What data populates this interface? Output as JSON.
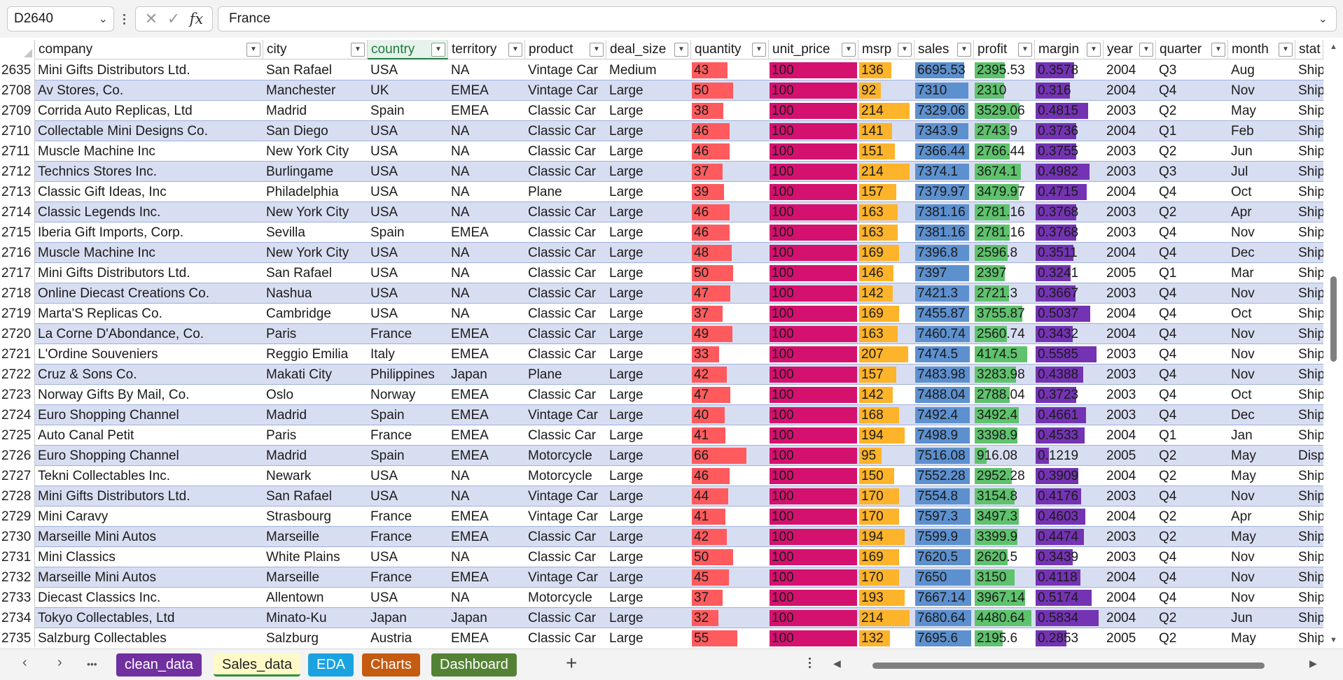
{
  "formula_bar": {
    "cell_ref": "D2640",
    "content": "France",
    "fx_label": "fx",
    "cancel_glyph": "✕",
    "confirm_glyph": "✓"
  },
  "columns": [
    "company",
    "city",
    "country",
    "territory",
    "product",
    "deal_size",
    "quantity",
    "unit_price",
    "msrp",
    "sales",
    "profit",
    "margin",
    "year",
    "quarter",
    "month",
    "status"
  ],
  "column_headers_visible": [
    "company",
    "city",
    "country",
    "territory",
    "product",
    "deal_size",
    "quantity",
    "unit_price",
    "msrp",
    "sales",
    "profit",
    "margin",
    "year",
    "quarter",
    "month",
    "stat"
  ],
  "selected_column": "country",
  "bar_colors": {
    "quantity": "#ff5b5e",
    "unit_price": "#d4116f",
    "msrp": "#fdb32a",
    "sales": "#5d90cf",
    "profit": "#5fc26d",
    "margin": "#7433b3"
  },
  "band_color": "#d8def2",
  "rows": [
    {
      "n": "2635",
      "company": "Mini Gifts Distributors Ltd.",
      "city": "San Rafael",
      "country": "USA",
      "territory": "NA",
      "product": "Vintage Car",
      "deal_size": "Medium",
      "quantity": "43",
      "unit_price": "100",
      "msrp": "136",
      "sales": "6695.53",
      "profit": "2395.53",
      "margin": "0.3578",
      "year": "2004",
      "quarter": "Q3",
      "month": "Aug",
      "status": "Ship"
    },
    {
      "n": "2708",
      "company": "Av Stores, Co.",
      "city": "Manchester",
      "country": "UK",
      "territory": "EMEA",
      "product": "Vintage Car",
      "deal_size": "Large",
      "quantity": "50",
      "unit_price": "100",
      "msrp": "92",
      "sales": "7310",
      "profit": "2310",
      "margin": "0.316",
      "year": "2004",
      "quarter": "Q4",
      "month": "Nov",
      "status": "Ship"
    },
    {
      "n": "2709",
      "company": "Corrida Auto Replicas, Ltd",
      "city": "Madrid",
      "country": "Spain",
      "territory": "EMEA",
      "product": "Classic Car",
      "deal_size": "Large",
      "quantity": "38",
      "unit_price": "100",
      "msrp": "214",
      "sales": "7329.06",
      "profit": "3529.06",
      "margin": "0.4815",
      "year": "2003",
      "quarter": "Q2",
      "month": "May",
      "status": "Ship"
    },
    {
      "n": "2710",
      "company": "Collectable Mini Designs Co.",
      "city": "San Diego",
      "country": "USA",
      "territory": "NA",
      "product": "Classic Car",
      "deal_size": "Large",
      "quantity": "46",
      "unit_price": "100",
      "msrp": "141",
      "sales": "7343.9",
      "profit": "2743.9",
      "margin": "0.3736",
      "year": "2004",
      "quarter": "Q1",
      "month": "Feb",
      "status": "Ship"
    },
    {
      "n": "2711",
      "company": "Muscle Machine Inc",
      "city": "New York City",
      "country": "USA",
      "territory": "NA",
      "product": "Classic Car",
      "deal_size": "Large",
      "quantity": "46",
      "unit_price": "100",
      "msrp": "151",
      "sales": "7366.44",
      "profit": "2766.44",
      "margin": "0.3755",
      "year": "2003",
      "quarter": "Q2",
      "month": "Jun",
      "status": "Ship"
    },
    {
      "n": "2712",
      "company": "Technics Stores Inc.",
      "city": "Burlingame",
      "country": "USA",
      "territory": "NA",
      "product": "Classic Car",
      "deal_size": "Large",
      "quantity": "37",
      "unit_price": "100",
      "msrp": "214",
      "sales": "7374.1",
      "profit": "3674.1",
      "margin": "0.4982",
      "year": "2003",
      "quarter": "Q3",
      "month": "Jul",
      "status": "Ship"
    },
    {
      "n": "2713",
      "company": "Classic Gift Ideas, Inc",
      "city": "Philadelphia",
      "country": "USA",
      "territory": "NA",
      "product": "Plane",
      "deal_size": "Large",
      "quantity": "39",
      "unit_price": "100",
      "msrp": "157",
      "sales": "7379.97",
      "profit": "3479.97",
      "margin": "0.4715",
      "year": "2004",
      "quarter": "Q4",
      "month": "Oct",
      "status": "Ship"
    },
    {
      "n": "2714",
      "company": "Classic Legends Inc.",
      "city": "New York City",
      "country": "USA",
      "territory": "NA",
      "product": "Classic Car",
      "deal_size": "Large",
      "quantity": "46",
      "unit_price": "100",
      "msrp": "163",
      "sales": "7381.16",
      "profit": "2781.16",
      "margin": "0.3768",
      "year": "2003",
      "quarter": "Q2",
      "month": "Apr",
      "status": "Ship"
    },
    {
      "n": "2715",
      "company": "Iberia Gift Imports, Corp.",
      "city": "Sevilla",
      "country": "Spain",
      "territory": "EMEA",
      "product": "Classic Car",
      "deal_size": "Large",
      "quantity": "46",
      "unit_price": "100",
      "msrp": "163",
      "sales": "7381.16",
      "profit": "2781.16",
      "margin": "0.3768",
      "year": "2003",
      "quarter": "Q4",
      "month": "Nov",
      "status": "Ship"
    },
    {
      "n": "2716",
      "company": "Muscle Machine Inc",
      "city": "New York City",
      "country": "USA",
      "territory": "NA",
      "product": "Classic Car",
      "deal_size": "Large",
      "quantity": "48",
      "unit_price": "100",
      "msrp": "169",
      "sales": "7396.8",
      "profit": "2596.8",
      "margin": "0.3511",
      "year": "2004",
      "quarter": "Q4",
      "month": "Dec",
      "status": "Ship"
    },
    {
      "n": "2717",
      "company": "Mini Gifts Distributors Ltd.",
      "city": "San Rafael",
      "country": "USA",
      "territory": "NA",
      "product": "Classic Car",
      "deal_size": "Large",
      "quantity": "50",
      "unit_price": "100",
      "msrp": "146",
      "sales": "7397",
      "profit": "2397",
      "margin": "0.3241",
      "year": "2005",
      "quarter": "Q1",
      "month": "Mar",
      "status": "Ship"
    },
    {
      "n": "2718",
      "company": "Online Diecast Creations Co.",
      "city": "Nashua",
      "country": "USA",
      "territory": "NA",
      "product": "Classic Car",
      "deal_size": "Large",
      "quantity": "47",
      "unit_price": "100",
      "msrp": "142",
      "sales": "7421.3",
      "profit": "2721.3",
      "margin": "0.3667",
      "year": "2003",
      "quarter": "Q4",
      "month": "Nov",
      "status": "Ship"
    },
    {
      "n": "2719",
      "company": "Marta'S Replicas Co.",
      "city": "Cambridge",
      "country": "USA",
      "territory": "NA",
      "product": "Classic Car",
      "deal_size": "Large",
      "quantity": "37",
      "unit_price": "100",
      "msrp": "169",
      "sales": "7455.87",
      "profit": "3755.87",
      "margin": "0.5037",
      "year": "2004",
      "quarter": "Q4",
      "month": "Oct",
      "status": "Ship"
    },
    {
      "n": "2720",
      "company": "La Corne D'Abondance, Co.",
      "city": "Paris",
      "country": "France",
      "territory": "EMEA",
      "product": "Classic Car",
      "deal_size": "Large",
      "quantity": "49",
      "unit_price": "100",
      "msrp": "163",
      "sales": "7460.74",
      "profit": "2560.74",
      "margin": "0.3432",
      "year": "2004",
      "quarter": "Q4",
      "month": "Nov",
      "status": "Ship"
    },
    {
      "n": "2721",
      "company": "L'Ordine Souveniers",
      "city": "Reggio Emilia",
      "country": "Italy",
      "territory": "EMEA",
      "product": "Classic Car",
      "deal_size": "Large",
      "quantity": "33",
      "unit_price": "100",
      "msrp": "207",
      "sales": "7474.5",
      "profit": "4174.5",
      "margin": "0.5585",
      "year": "2003",
      "quarter": "Q4",
      "month": "Nov",
      "status": "Ship"
    },
    {
      "n": "2722",
      "company": "Cruz & Sons Co.",
      "city": "Makati City",
      "country": "Philippines",
      "territory": "Japan",
      "product": "Plane",
      "deal_size": "Large",
      "quantity": "42",
      "unit_price": "100",
      "msrp": "157",
      "sales": "7483.98",
      "profit": "3283.98",
      "margin": "0.4388",
      "year": "2003",
      "quarter": "Q4",
      "month": "Nov",
      "status": "Ship"
    },
    {
      "n": "2723",
      "company": "Norway Gifts By Mail, Co.",
      "city": "Oslo",
      "country": "Norway",
      "territory": "EMEA",
      "product": "Classic Car",
      "deal_size": "Large",
      "quantity": "47",
      "unit_price": "100",
      "msrp": "142",
      "sales": "7488.04",
      "profit": "2788.04",
      "margin": "0.3723",
      "year": "2003",
      "quarter": "Q4",
      "month": "Oct",
      "status": "Ship"
    },
    {
      "n": "2724",
      "company": "Euro Shopping Channel",
      "city": "Madrid",
      "country": "Spain",
      "territory": "EMEA",
      "product": "Vintage Car",
      "deal_size": "Large",
      "quantity": "40",
      "unit_price": "100",
      "msrp": "168",
      "sales": "7492.4",
      "profit": "3492.4",
      "margin": "0.4661",
      "year": "2003",
      "quarter": "Q4",
      "month": "Dec",
      "status": "Ship"
    },
    {
      "n": "2725",
      "company": "Auto Canal Petit",
      "city": "Paris",
      "country": "France",
      "territory": "EMEA",
      "product": "Classic Car",
      "deal_size": "Large",
      "quantity": "41",
      "unit_price": "100",
      "msrp": "194",
      "sales": "7498.9",
      "profit": "3398.9",
      "margin": "0.4533",
      "year": "2004",
      "quarter": "Q1",
      "month": "Jan",
      "status": "Ship"
    },
    {
      "n": "2726",
      "company": "Euro Shopping Channel",
      "city": "Madrid",
      "country": "Spain",
      "territory": "EMEA",
      "product": "Motorcycle",
      "deal_size": "Large",
      "quantity": "66",
      "unit_price": "100",
      "msrp": "95",
      "sales": "7516.08",
      "profit": "916.08",
      "margin": "0.1219",
      "year": "2005",
      "quarter": "Q2",
      "month": "May",
      "status": "Disp"
    },
    {
      "n": "2727",
      "company": "Tekni Collectables Inc.",
      "city": "Newark",
      "country": "USA",
      "territory": "NA",
      "product": "Motorcycle",
      "deal_size": "Large",
      "quantity": "46",
      "unit_price": "100",
      "msrp": "150",
      "sales": "7552.28",
      "profit": "2952.28",
      "margin": "0.3909",
      "year": "2004",
      "quarter": "Q2",
      "month": "May",
      "status": "Ship"
    },
    {
      "n": "2728",
      "company": "Mini Gifts Distributors Ltd.",
      "city": "San Rafael",
      "country": "USA",
      "territory": "NA",
      "product": "Vintage Car",
      "deal_size": "Large",
      "quantity": "44",
      "unit_price": "100",
      "msrp": "170",
      "sales": "7554.8",
      "profit": "3154.8",
      "margin": "0.4176",
      "year": "2003",
      "quarter": "Q4",
      "month": "Nov",
      "status": "Ship"
    },
    {
      "n": "2729",
      "company": "Mini Caravy",
      "city": "Strasbourg",
      "country": "France",
      "territory": "EMEA",
      "product": "Vintage Car",
      "deal_size": "Large",
      "quantity": "41",
      "unit_price": "100",
      "msrp": "170",
      "sales": "7597.3",
      "profit": "3497.3",
      "margin": "0.4603",
      "year": "2004",
      "quarter": "Q2",
      "month": "Apr",
      "status": "Ship"
    },
    {
      "n": "2730",
      "company": "Marseille Mini Autos",
      "city": "Marseille",
      "country": "France",
      "territory": "EMEA",
      "product": "Classic Car",
      "deal_size": "Large",
      "quantity": "42",
      "unit_price": "100",
      "msrp": "194",
      "sales": "7599.9",
      "profit": "3399.9",
      "margin": "0.4474",
      "year": "2003",
      "quarter": "Q2",
      "month": "May",
      "status": "Ship"
    },
    {
      "n": "2731",
      "company": "Mini Classics",
      "city": "White Plains",
      "country": "USA",
      "territory": "NA",
      "product": "Classic Car",
      "deal_size": "Large",
      "quantity": "50",
      "unit_price": "100",
      "msrp": "169",
      "sales": "7620.5",
      "profit": "2620.5",
      "margin": "0.3439",
      "year": "2003",
      "quarter": "Q4",
      "month": "Nov",
      "status": "Ship"
    },
    {
      "n": "2732",
      "company": "Marseille Mini Autos",
      "city": "Marseille",
      "country": "France",
      "territory": "EMEA",
      "product": "Vintage Car",
      "deal_size": "Large",
      "quantity": "45",
      "unit_price": "100",
      "msrp": "170",
      "sales": "7650",
      "profit": "3150",
      "margin": "0.4118",
      "year": "2004",
      "quarter": "Q4",
      "month": "Nov",
      "status": "Ship"
    },
    {
      "n": "2733",
      "company": "Diecast Classics Inc.",
      "city": "Allentown",
      "country": "USA",
      "territory": "NA",
      "product": "Motorcycle",
      "deal_size": "Large",
      "quantity": "37",
      "unit_price": "100",
      "msrp": "193",
      "sales": "7667.14",
      "profit": "3967.14",
      "margin": "0.5174",
      "year": "2004",
      "quarter": "Q4",
      "month": "Nov",
      "status": "Ship"
    },
    {
      "n": "2734",
      "company": "Tokyo Collectables, Ltd",
      "city": "Minato-Ku",
      "country": "Japan",
      "territory": "Japan",
      "product": "Classic Car",
      "deal_size": "Large",
      "quantity": "32",
      "unit_price": "100",
      "msrp": "214",
      "sales": "7680.64",
      "profit": "4480.64",
      "margin": "0.5834",
      "year": "2004",
      "quarter": "Q2",
      "month": "Jun",
      "status": "Ship"
    },
    {
      "n": "2735",
      "company": "Salzburg Collectables",
      "city": "Salzburg",
      "country": "Austria",
      "territory": "EMEA",
      "product": "Classic Car",
      "deal_size": "Large",
      "quantity": "55",
      "unit_price": "100",
      "msrp": "132",
      "sales": "7695.6",
      "profit": "2195.6",
      "margin": "0.2853",
      "year": "2005",
      "quarter": "Q2",
      "month": "May",
      "status": "Ship"
    }
  ],
  "sheet_tabs": [
    {
      "label": "clean_data",
      "color": "#7030a0",
      "active": false
    },
    {
      "label": "Sales_data",
      "color": "#fff9c7",
      "active": true
    },
    {
      "label": "EDA",
      "color": "#1aa3e0",
      "active": false
    },
    {
      "label": "Charts",
      "color": "#c55a11",
      "active": false
    },
    {
      "label": "Dashboard",
      "color": "#548235",
      "active": false
    }
  ],
  "tab_nav": {
    "prev": "‹",
    "next": "›",
    "more": "•••",
    "add": "+"
  }
}
